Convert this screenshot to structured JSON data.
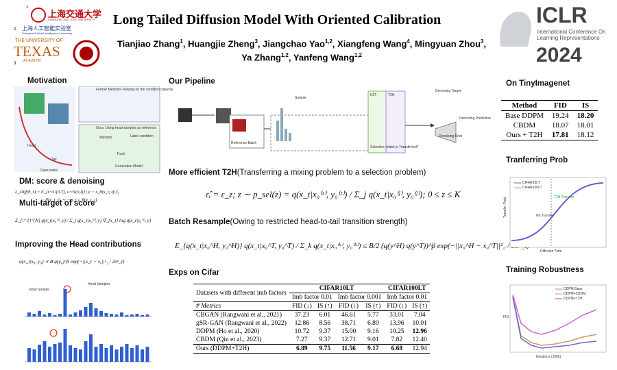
{
  "header": {
    "title": "Long Tailed Diffusion Model With Oriented Calibration",
    "authors_line1": [
      {
        "name": "Tianjiao Zhang",
        "aff": "1",
        "sep": ","
      },
      {
        "name": "Huangjie Zheng",
        "aff": "3",
        "sep": ","
      },
      {
        "name": "Jiangchao Yao",
        "aff": "1,2",
        "sep": ","
      },
      {
        "name": "Xiangfeng Wang",
        "aff": "4",
        "sep": ","
      },
      {
        "name": "Mingyuan Zhou",
        "aff": "3",
        "sep": ","
      }
    ],
    "authors_line2": [
      {
        "name": "Ya Zhang",
        "aff": "1,2",
        "sep": ","
      },
      {
        "name": "Yanfeng Wang",
        "aff": "1,2",
        "sep": ""
      }
    ],
    "logos": {
      "n1": "1",
      "sjtu_cn": "上海交通大学",
      "sjtu_en": "SHANGHAI JIAO TONG UNIVERSITY",
      "n2": "2",
      "lab_cn": "上海人工智能实验室",
      "lab_en": "Shanghai Artificial Intelligence Laboratory",
      "ut_top": "THE UNIVERSITY OF",
      "ut_mid": "TEXAS",
      "ut_bot": "AT AUSTIN",
      "n3": "3"
    },
    "iclr": {
      "name": "ICLR",
      "sub": "International Conference On Learning Representations",
      "year": "2024"
    }
  },
  "left": {
    "motivation": {
      "heading": "Motivation",
      "labels": [
        "Former Methods: Relying on the condition capacity",
        "Ours: Using head samples as reference",
        "Airplane",
        "Truck",
        "Head",
        "Tail",
        "Class index",
        "Generation Model",
        "Label condition"
      ]
    },
    "dm": {
      "heading": "DM: score & denoising",
      "eq1": "L_Diff(θ, z) = E_{t∼U(0,T), ε∼N(0,I)} ||ε − ε_θ(x_t; t)||²₂",
      "eq2": "ε_θ(x_t, t) ∼ −σ_t s_θ(x_t, t)"
    },
    "multi": {
      "heading": "Multi-target of score",
      "eq": "Σ_{i=1}^{N}  q(x_t|x₀⁽ⁱ⁾, y) / Σ_j q(x_t|x₀⁽ʲ⁾, y)  ∇_{x_t} log q(x_t|x₀⁽ⁱ⁾, y)"
    },
    "head": {
      "heading": "Improving the Head contributions",
      "eq": "q(x_t|x₀, y₀) ∝ B q(y₀)^β exp(−||x_t − x₀||²₂ / 2σ²_t)",
      "labels": [
        "Initial Sample",
        "Head Samples"
      ]
    }
  },
  "middle": {
    "pipeline": {
      "heading": "Our Pipeline",
      "labels": [
        "Reference Batch",
        "Sample",
        "H2T",
        "T2H",
        "Selection: Initial or Transferred?",
        "Denoising Target",
        "Denoising Prediction",
        "Denoising Unet"
      ]
    },
    "t2h": {
      "heading": "More efficient T2H",
      "paren": "(Transferring a mixing problem to a selection problem)",
      "eq": "ε̂ᵢ = ε_z;    z ∼ p_sel(z) = q(x_t|x₀⁽ᶻ⁾, y₀⁽ᶻ⁾) / Σ_j q(x_t|x₀⁽ʲ⁾, y₀⁽ʲ⁾);    0 ≤ z ≤ K"
    },
    "batch": {
      "heading": "Batch Resample",
      "paren": "(Owing to restricted head-to-tail transition strength)",
      "eq": "E_{q(x_t|x₀^H, y₀^H)}  q(x_t|x₀^T, y₀^T) / Σ_k q(x_t|x₀⁽ᵏ⁾, y₀⁽ᵏ⁾)  ≤  B/2 (q(y^H) q(y^T))^β exp(−||x₀^H − x₀^T||²₂ / 8σ²_t)"
    },
    "exps": {
      "heading": "Exps on Cifar",
      "table": {
        "corner": "Datasets with different imb factors",
        "groups": [
          "CIFAR10LT",
          "CIFAR100LT"
        ],
        "factors": [
          "Imb factor 0.01",
          "Imb factor 0.001",
          "Imb factor 0.01"
        ],
        "metric_head": "# Metrics",
        "metrics": [
          "FID (↓)",
          "IS (↑)",
          "FID (↓)",
          "IS (↑)",
          "FID (↓)",
          "IS (↑)"
        ],
        "rows": [
          [
            "CBGAN (Rangwani et al., 2021)",
            "37.23",
            "6.01",
            "46.61",
            "5.77",
            "33.01",
            "7.04"
          ],
          [
            "gSR-GAN (Rangwani et al., 2022)",
            "12.86",
            "8.56",
            "38.71",
            "6.89",
            "13.96",
            "10.01"
          ],
          [
            "DDPM (Ho et al., 2020)",
            "10.72",
            "9.37",
            "15.00",
            "9.16",
            "10.25",
            "12.96"
          ],
          [
            "CBDM (Qin et al., 2023)",
            "7.27",
            "9.37",
            "12.71",
            "9.01",
            "7.82",
            "12.40"
          ],
          [
            "Ours (DDPM+T2H)",
            "6.89",
            "9.75",
            "11.56",
            "9.17",
            "6.68",
            "12.94"
          ]
        ],
        "bold": [
          [
            2,
            6
          ],
          [
            4,
            1
          ],
          [
            4,
            2
          ],
          [
            4,
            3
          ],
          [
            4,
            4
          ],
          [
            4,
            5
          ]
        ]
      }
    }
  },
  "right": {
    "tiny": {
      "heading": "On TinyImagenet",
      "table": {
        "head": [
          "Method",
          "FID",
          "IS"
        ],
        "rows": [
          [
            "Base DDPM",
            "19.24",
            "18.20"
          ],
          [
            "CBDM",
            "18.07",
            "18.01"
          ],
          [
            "Ours + T2H",
            "17.81",
            "18.12"
          ]
        ],
        "bold": [
          [
            0,
            2
          ],
          [
            2,
            1
          ]
        ]
      }
    },
    "prob": {
      "heading": "Tranferring Prob",
      "legend": [
        "CIFAR10LT",
        "CIFAR100LT"
      ],
      "xlabel": "Diffusion Time",
      "ylabel": "Transfer Prob",
      "labels": [
        "T2H Transfer",
        "No Transfer"
      ]
    },
    "robust": {
      "heading": "Training Robustness",
      "legend": [
        "DDPM Base",
        "DDPM+CBDM",
        "DDPM+T2H"
      ],
      "xlabel": "Iterations (100k)",
      "ylabel": "FID"
    }
  }
}
